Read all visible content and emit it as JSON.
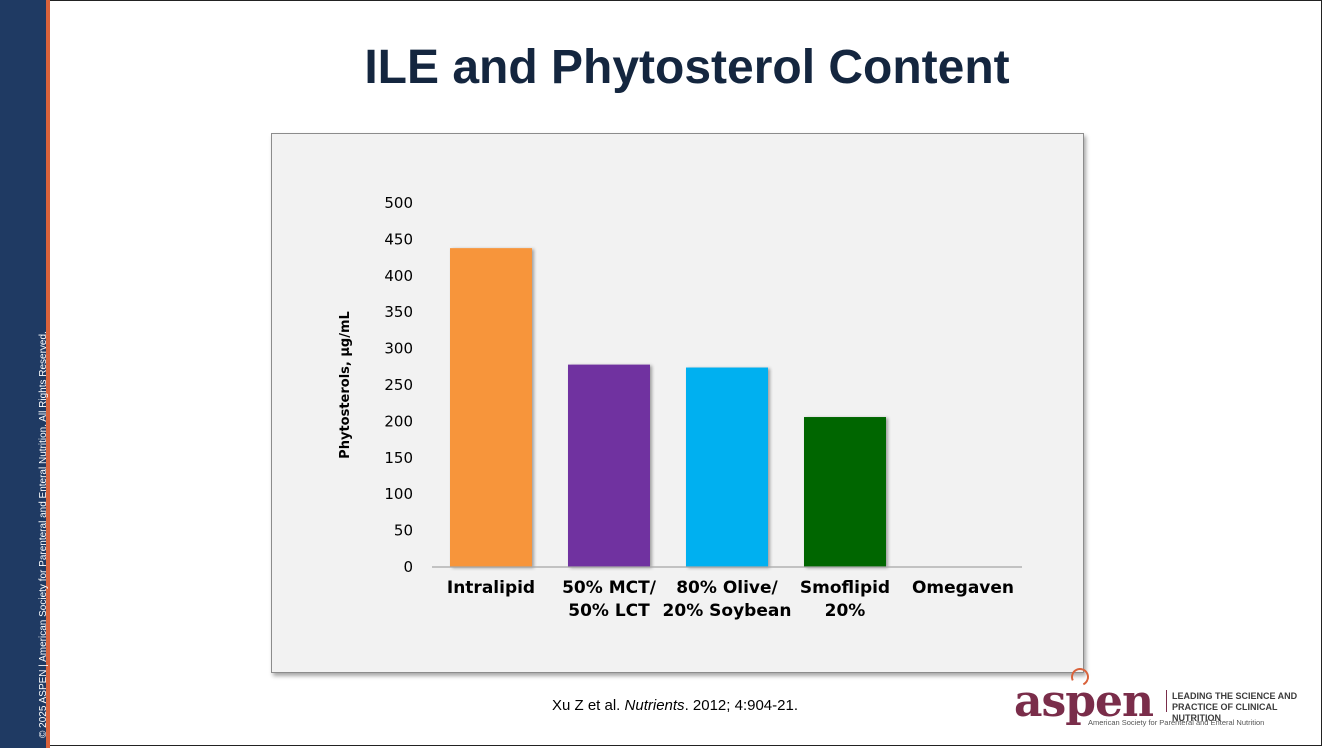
{
  "slide": {
    "title": "ILE and Phytosterol Content",
    "copyright": "© 2025 ASPEN | American Society for Parenteral and Enteral Nutrition.   All Rights Reserved.",
    "citation_pre": "Xu Z et al. ",
    "citation_journal": "Nutrients",
    "citation_post": ". 2012; 4:904-21."
  },
  "logo": {
    "wordmark": "aspen",
    "tagline_1": "LEADING THE SCIENCE AND",
    "tagline_2": "PRACTICE OF CLINICAL NUTRITION",
    "full_name": "American Society for Parenteral and Enteral Nutrition"
  },
  "chart_data": {
    "type": "bar",
    "categories": [
      [
        "Intralipid"
      ],
      [
        "50% MCT/",
        "50% LCT"
      ],
      [
        "80% Olive/",
        "20% Soybean"
      ],
      [
        "Smoflipid",
        "20%"
      ],
      [
        "Omegaven"
      ]
    ],
    "values": [
      438,
      278,
      274,
      206,
      0
    ],
    "colors": [
      "#f7953a",
      "#7030a0",
      "#00b0f0",
      "#006600",
      "#888888"
    ],
    "ylabel": "Phytosterols, µg/mL",
    "ylim": [
      0,
      500
    ],
    "yticks": [
      0,
      50,
      100,
      150,
      200,
      250,
      300,
      350,
      400,
      450,
      500
    ],
    "grid": false,
    "legend": "none"
  }
}
